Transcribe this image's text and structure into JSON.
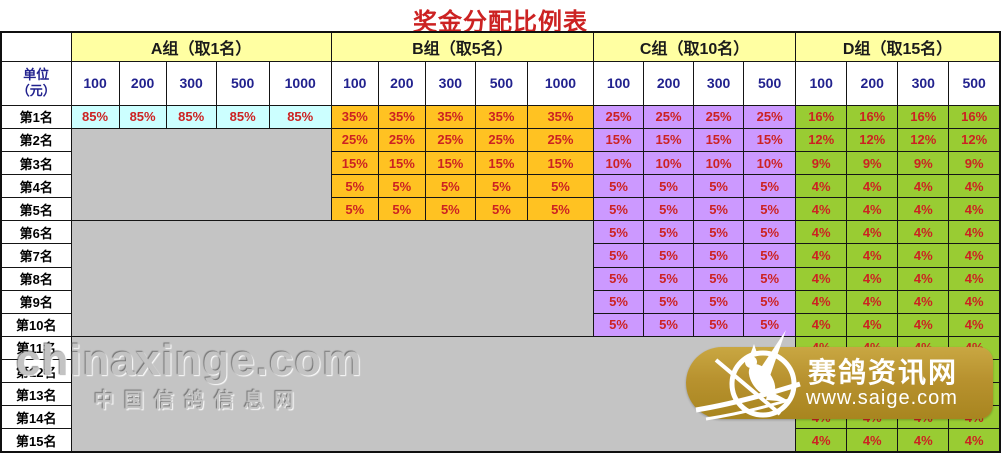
{
  "title": "奖金分配比例表",
  "table": {
    "unit_label_line1": "单位",
    "unit_label_line2": "（元）",
    "row_labels": [
      "第1名",
      "第2名",
      "第3名",
      "第4名",
      "第5名",
      "第6名",
      "第7名",
      "第8名",
      "第9名",
      "第10名",
      "第11名",
      "第12名",
      "第13名",
      "第14名",
      "第15名"
    ],
    "groups": [
      {
        "id": "a",
        "header": "A组（取1名）",
        "columns": [
          "100",
          "200",
          "300",
          "500",
          "1000"
        ]
      },
      {
        "id": "b",
        "header": "B组（取5名）",
        "columns": [
          "100",
          "200",
          "300",
          "500",
          "1000"
        ]
      },
      {
        "id": "c",
        "header": "C组（取10名）",
        "columns": [
          "100",
          "200",
          "300",
          "500"
        ]
      },
      {
        "id": "d",
        "header": "D组（取15名）",
        "columns": [
          "100",
          "200",
          "300",
          "500"
        ]
      }
    ],
    "values": {
      "a": [
        "85%",
        null,
        null,
        null,
        null,
        null,
        null,
        null,
        null,
        null,
        null,
        null,
        null,
        null,
        null
      ],
      "b": [
        "35%",
        "25%",
        "15%",
        "5%",
        "5%",
        null,
        null,
        null,
        null,
        null,
        null,
        null,
        null,
        null,
        null
      ],
      "c": [
        "25%",
        "15%",
        "10%",
        "5%",
        "5%",
        "5%",
        "5%",
        "5%",
        "5%",
        "5%",
        null,
        null,
        null,
        null,
        null
      ],
      "d": [
        "16%",
        "12%",
        "9%",
        "4%",
        "4%",
        "4%",
        "4%",
        "4%",
        "4%",
        "4%",
        "4%",
        "4%",
        "4%",
        "4%",
        "4%"
      ]
    }
  },
  "watermarks": {
    "left_line1": "chinaxinge.com",
    "left_line2": "中国信鸽信息网",
    "right_title": "赛鸽资讯网",
    "right_url": "www.saige.com"
  },
  "colors": {
    "title_text": "#CC2222",
    "group_header_bg": "#FFFFA2",
    "a_row_bg": "#CCFFFF",
    "b_group_bg": "#FFC222",
    "c_group_bg": "#CC99FF",
    "d_group_bg": "#99CC33",
    "empty_bg": "#C4C4C4",
    "value_text": "#CC2222",
    "unit_header_text": "#22228E",
    "badge_gold": "#B8922F"
  },
  "chart_data": {
    "type": "table",
    "title": "奖金分配比例表",
    "row_header": "单位（元）",
    "groups": [
      {
        "name": "A组（取1名）",
        "unit_columns": [
          100,
          200,
          300,
          500,
          1000
        ],
        "values_percent_by_rank": [
          85
        ]
      },
      {
        "name": "B组（取5名）",
        "unit_columns": [
          100,
          200,
          300,
          500,
          1000
        ],
        "values_percent_by_rank": [
          35,
          25,
          15,
          5,
          5
        ]
      },
      {
        "name": "C组（取10名）",
        "unit_columns": [
          100,
          200,
          300,
          500
        ],
        "values_percent_by_rank": [
          25,
          15,
          10,
          5,
          5,
          5,
          5,
          5,
          5,
          5
        ]
      },
      {
        "name": "D组（取15名）",
        "unit_columns": [
          100,
          200,
          300,
          500
        ],
        "values_percent_by_rank": [
          16,
          12,
          9,
          4,
          4,
          4,
          4,
          4,
          4,
          4,
          4,
          4,
          4,
          4,
          4
        ]
      }
    ],
    "rank_labels": [
      "第1名",
      "第2名",
      "第3名",
      "第4名",
      "第5名",
      "第6名",
      "第7名",
      "第8名",
      "第9名",
      "第10名",
      "第11名",
      "第12名",
      "第13名",
      "第14名",
      "第15名"
    ],
    "note": "values are identical across all unit columns within each group; ranks beyond a group's cutoff are empty (gray)"
  }
}
